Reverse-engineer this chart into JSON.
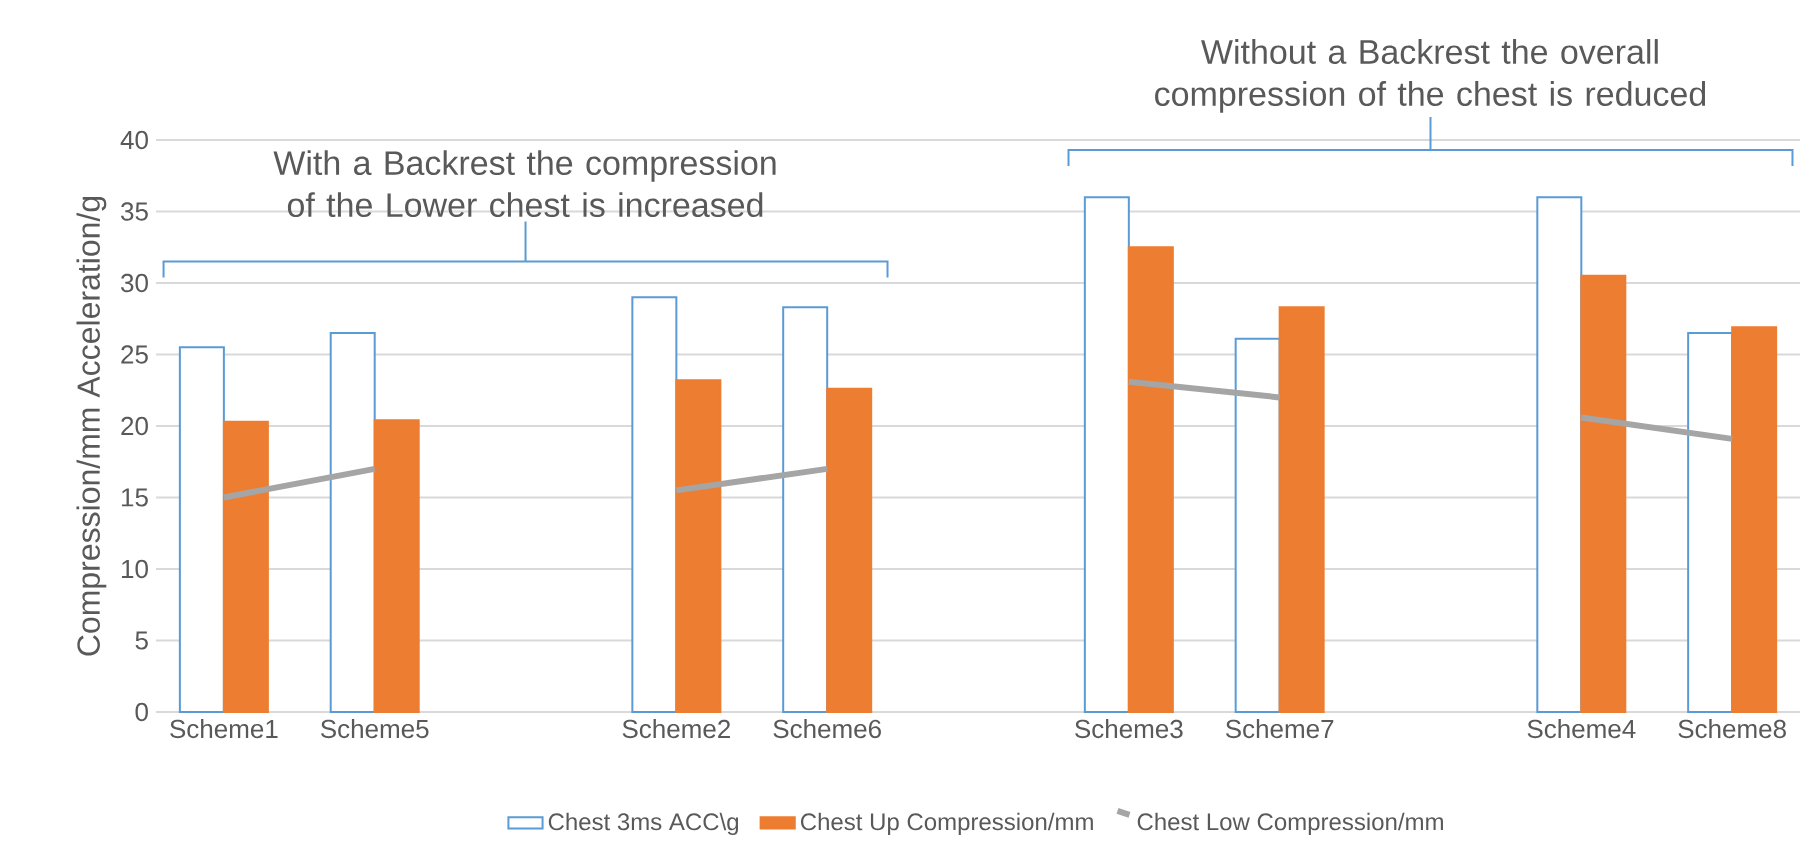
{
  "chart_data": {
    "type": "bar",
    "ylabel": "Compression/mm Acceleration/g",
    "categories": [
      "Scheme1",
      "Scheme5",
      null,
      "Scheme2",
      "Scheme6",
      null,
      "Scheme3",
      "Scheme7",
      null,
      "Scheme4",
      "Scheme8"
    ],
    "series": [
      {
        "name": "Chest 3ms ACC\\g",
        "color": "#5b9bd5",
        "values": [
          25.5,
          26.5,
          null,
          29.0,
          28.3,
          null,
          36.0,
          26.1,
          null,
          36.0,
          26.5
        ]
      },
      {
        "name": "Chest Up Compression/mm",
        "color": "#ed7d31",
        "values": [
          20.3,
          20.4,
          null,
          23.2,
          22.6,
          null,
          32.5,
          28.3,
          null,
          30.5,
          26.9
        ]
      },
      {
        "name": "Chest Low Compression/mm",
        "type": "line",
        "color": "#a5a5a5",
        "values": [
          15.0,
          17.0,
          null,
          15.5,
          17.0,
          null,
          23.1,
          22.0,
          null,
          20.6,
          19.1
        ]
      }
    ],
    "annotations": [
      "With a Backrest the compression of the Lower chest is increased",
      "Without a Backrest the overall compression of the chest is reduced"
    ],
    "ylim": [
      0,
      40
    ],
    "yticks": [
      0,
      5,
      10,
      15,
      20,
      25,
      30,
      35,
      40
    ],
    "grid": "y",
    "legend": "bottom",
    "marker": "none"
  }
}
